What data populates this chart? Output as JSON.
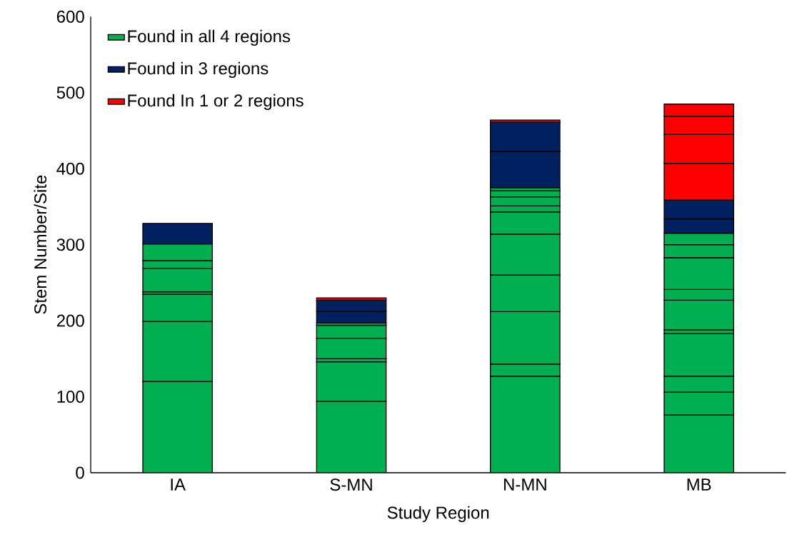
{
  "chart_data": {
    "type": "bar",
    "stacked": true,
    "xlabel": "Study Region",
    "ylabel": "Stem Number/Site",
    "categories": [
      "IA",
      "S-MN",
      "N-MN",
      "MB"
    ],
    "ylim": [
      0,
      600
    ],
    "yticks": [
      0,
      100,
      200,
      300,
      400,
      500,
      600
    ],
    "grid": false,
    "legend": "top left",
    "series": [
      {
        "name": "Found in all 4 regions",
        "color": "#00b050",
        "values": [
          120,
          94,
          127,
          76
        ]
      },
      {
        "color": "#00b050",
        "values": [
          79,
          52,
          16,
          30
        ]
      },
      {
        "color": "#00b050",
        "values": [
          36,
          4,
          69,
          21
        ]
      },
      {
        "color": "#00b050",
        "values": [
          3,
          27,
          48,
          56
        ]
      },
      {
        "color": "#00b050",
        "values": [
          31,
          17,
          54,
          5
        ]
      },
      {
        "color": "#00b050",
        "values": [
          10,
          3,
          29,
          39
        ]
      },
      {
        "color": "#00b050",
        "values": [
          22,
          null,
          8,
          14
        ]
      },
      {
        "color": "#00b050",
        "values": [
          null,
          null,
          12,
          42
        ]
      },
      {
        "color": "#00b050",
        "values": [
          null,
          null,
          8,
          17
        ]
      },
      {
        "color": "#00b050",
        "values": [
          null,
          null,
          4,
          15
        ]
      },
      {
        "name": "Found in 3 regions",
        "color": "#002060",
        "values": [
          27,
          15,
          48,
          19
        ]
      },
      {
        "color": "#002060",
        "values": [
          null,
          15,
          38,
          25
        ]
      },
      {
        "name": "Found In 1 or 2 regions",
        "color": "#ff0000",
        "values": [
          null,
          3,
          3,
          48
        ]
      },
      {
        "color": "#ff0000",
        "values": [
          null,
          null,
          null,
          38
        ]
      },
      {
        "color": "#ff0000",
        "values": [
          null,
          null,
          null,
          24
        ]
      },
      {
        "color": "#ff0000",
        "values": [
          null,
          null,
          null,
          16
        ]
      }
    ]
  }
}
